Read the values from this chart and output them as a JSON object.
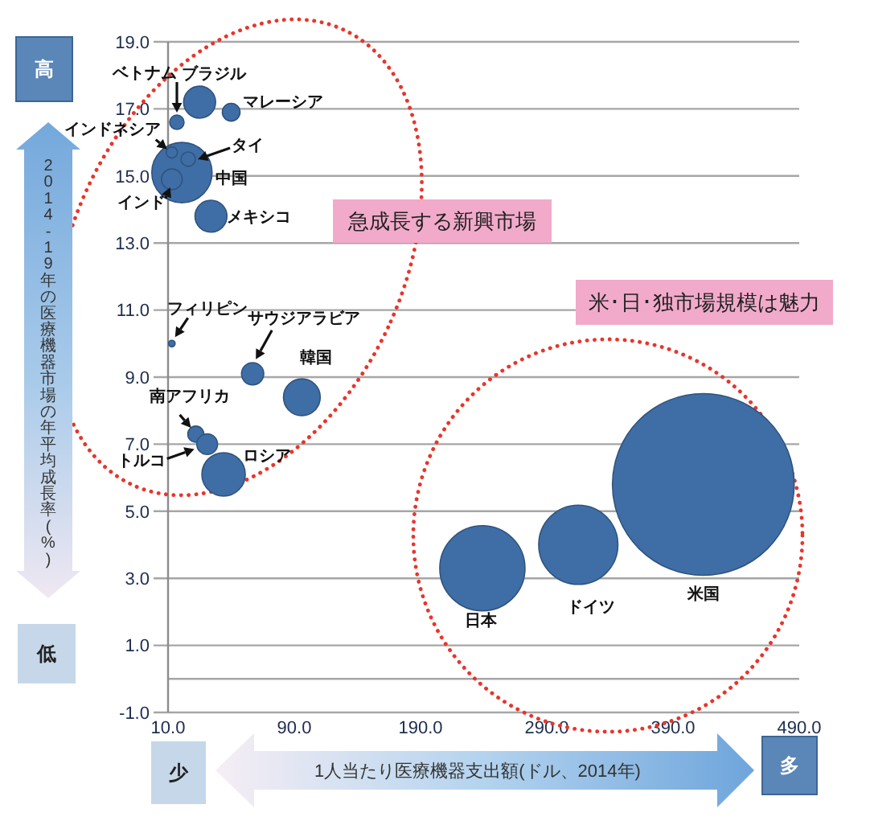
{
  "chart_data": {
    "type": "bubble",
    "xlabel": "1人当たり医療機器支出額(ドル、2014年)",
    "ylabel": "2014-19年の医療機器市場の年平均成長率(%)",
    "xlim": [
      -10,
      490
    ],
    "xticks": [
      {
        "value": -10,
        "label": "10.0"
      },
      {
        "value": 90,
        "label": "90.0"
      },
      {
        "value": 190,
        "label": "190.0"
      },
      {
        "value": 290,
        "label": "290.0"
      },
      {
        "value": 390,
        "label": "390.0"
      },
      {
        "value": 490,
        "label": "490.0"
      }
    ],
    "ylim": [
      -1,
      19
    ],
    "yticks": [
      {
        "value": -1,
        "label": "-1.0"
      },
      {
        "value": 1,
        "label": "1.0"
      },
      {
        "value": 3,
        "label": "3.0"
      },
      {
        "value": 5,
        "label": "5.0"
      },
      {
        "value": 7,
        "label": "7.0"
      },
      {
        "value": 9,
        "label": "9.0"
      },
      {
        "value": 11,
        "label": "11.0"
      },
      {
        "value": 13,
        "label": "13.0"
      },
      {
        "value": 15,
        "label": "15.0"
      },
      {
        "value": 17,
        "label": "17.0"
      },
      {
        "value": 19,
        "label": "19.0"
      }
    ],
    "grid": "y",
    "ref_lines": [
      {
        "axis": "y",
        "value": 0,
        "color": "#a6a6a6"
      }
    ],
    "series": [
      {
        "name": "ブラジル",
        "color": "#3f6ea6",
        "x": [
          15
        ],
        "values": [
          17.2
        ],
        "sizes": [
          0.031
        ]
      },
      {
        "name": "ベトナム",
        "color": "#3f6ea6",
        "x": [
          -3
        ],
        "values": [
          16.6
        ],
        "sizes": [
          0.0063
        ]
      },
      {
        "name": "マレーシア",
        "color": "#3f6ea6",
        "x": [
          40
        ],
        "values": [
          16.9
        ],
        "sizes": [
          0.0095
        ]
      },
      {
        "name": "中国",
        "color": "#3f6ea6",
        "x": [
          1
        ],
        "values": [
          15.1
        ],
        "sizes": [
          0.11
        ]
      },
      {
        "name": "インドネシア",
        "color": "#3f6ea6",
        "x": [
          -7
        ],
        "values": [
          15.7
        ],
        "sizes": [
          0.0038
        ]
      },
      {
        "name": "タイ",
        "color": "#3f6ea6",
        "x": [
          6
        ],
        "values": [
          15.5
        ],
        "sizes": [
          0.0063
        ]
      },
      {
        "name": "インド",
        "color": "#3f6ea6",
        "x": [
          -7
        ],
        "values": [
          14.9
        ],
        "sizes": [
          0.013
        ]
      },
      {
        "name": "メキシコ",
        "color": "#3f6ea6",
        "x": [
          24
        ],
        "values": [
          13.8
        ],
        "sizes": [
          0.031
        ]
      },
      {
        "name": "フィリピン",
        "color": "#3f6ea6",
        "x": [
          -7
        ],
        "values": [
          10.0
        ],
        "sizes": [
          0.0013
        ]
      },
      {
        "name": "サウジアラビア",
        "color": "#3f6ea6",
        "x": [
          57
        ],
        "values": [
          9.1
        ],
        "sizes": [
          0.015
        ]
      },
      {
        "name": "韓国",
        "color": "#3f6ea6",
        "x": [
          96
        ],
        "values": [
          8.4
        ],
        "sizes": [
          0.041
        ]
      },
      {
        "name": "南アフリカ",
        "color": "#3f6ea6",
        "x": [
          12
        ],
        "values": [
          7.3
        ],
        "sizes": [
          0.0078
        ]
      },
      {
        "name": "トルコ",
        "color": "#3f6ea6",
        "x": [
          21
        ],
        "values": [
          7.0
        ],
        "sizes": [
          0.013
        ]
      },
      {
        "name": "ロシア",
        "color": "#3f6ea6",
        "x": [
          34
        ],
        "values": [
          6.1
        ],
        "sizes": [
          0.057
        ]
      },
      {
        "name": "日本",
        "color": "#3f6ea6",
        "x": [
          239
        ],
        "values": [
          3.3
        ],
        "sizes": [
          0.22
        ]
      },
      {
        "name": "ドイツ",
        "color": "#3f6ea6",
        "x": [
          315
        ],
        "values": [
          4.0
        ],
        "sizes": [
          0.19
        ]
      },
      {
        "name": "米国",
        "color": "#3f6ea6",
        "x": [
          414
        ],
        "values": [
          5.8
        ],
        "sizes": [
          1
        ]
      }
    ],
    "annotations": [
      "高",
      "低",
      "少",
      "多",
      "急成長する新興市場",
      "米･日･独市場規模は魅力"
    ]
  }
}
